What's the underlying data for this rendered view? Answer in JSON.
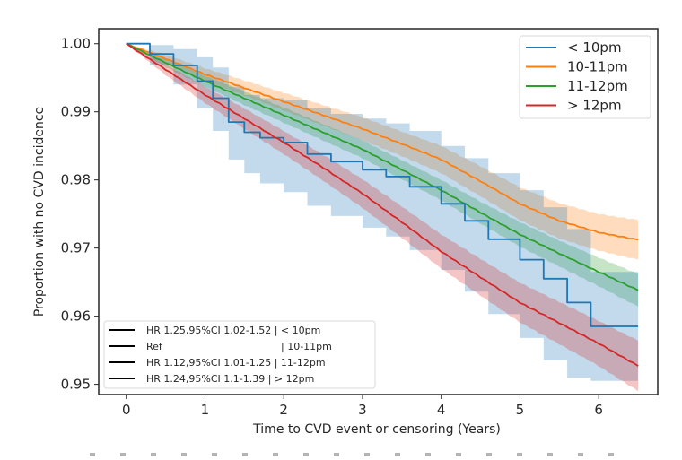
{
  "chart_data": {
    "type": "line",
    "subtype": "kaplan-meier survival curves with 95% confidence bands",
    "title": "",
    "xlabel": "Time to CVD event or censoring (Years)",
    "ylabel": "Proportion with no CVD incidence",
    "xlim": [
      -0.35,
      6.75
    ],
    "ylim": [
      0.9485,
      1.0022
    ],
    "xticks": [
      0,
      1,
      2,
      3,
      4,
      5,
      6
    ],
    "xtick_labels": [
      "0",
      "1",
      "2",
      "3",
      "4",
      "5",
      "6"
    ],
    "yticks": [
      0.95,
      0.96,
      0.97,
      0.98,
      0.99,
      1.0
    ],
    "ytick_labels": [
      "0.95",
      "0.96",
      "0.97",
      "0.98",
      "0.99",
      "1.00"
    ],
    "grid": false,
    "legend": {
      "placement": "top-right",
      "entries": [
        {
          "label": "< 10pm",
          "color": "#1f77b4"
        },
        {
          "label": "10-11pm",
          "color": "#ff7f0e"
        },
        {
          "label": "11-12pm",
          "color": "#2ca02c"
        },
        {
          "label": "> 12pm",
          "color": "#d62728"
        }
      ]
    },
    "hr_legend": {
      "placement": "bottom-left",
      "color": "#000000",
      "entries": [
        {
          "label": "HR 1.25,95%CI 1.02-1.52 | < 10pm"
        },
        {
          "label": "Ref                                          | 10-11pm"
        },
        {
          "label": "HR 1.12,95%CI 1.01-1.25 | 11-12pm"
        },
        {
          "label": "HR 1.24,95%CI 1.1-1.39 | > 12pm"
        }
      ]
    },
    "series": [
      {
        "name": "10-11pm",
        "color": "#ff7f0e",
        "step": false,
        "x": [
          0,
          0.5,
          1,
          1.5,
          2,
          2.5,
          3,
          3.5,
          4,
          4.5,
          5,
          5.5,
          6,
          6.5
        ],
        "y": [
          1.0,
          0.9978,
          0.9955,
          0.9935,
          0.9915,
          0.9895,
          0.9875,
          0.9853,
          0.983,
          0.9798,
          0.9765,
          0.974,
          0.9723,
          0.9712
        ],
        "lower": [
          1.0,
          0.9972,
          0.9946,
          0.9924,
          0.9902,
          0.988,
          0.9858,
          0.9835,
          0.981,
          0.9776,
          0.9741,
          0.9714,
          0.9696,
          0.9683
        ],
        "upper": [
          1.0,
          0.9984,
          0.9964,
          0.9946,
          0.9928,
          0.991,
          0.9892,
          0.9871,
          0.985,
          0.982,
          0.9789,
          0.9766,
          0.975,
          0.9741
        ]
      },
      {
        "name": "11-12pm",
        "color": "#2ca02c",
        "step": false,
        "x": [
          0,
          0.5,
          1,
          1.5,
          2,
          2.5,
          3,
          3.5,
          4,
          4.5,
          5,
          5.5,
          6,
          6.5
        ],
        "y": [
          1.0,
          0.9972,
          0.9945,
          0.992,
          0.9895,
          0.987,
          0.9845,
          0.9815,
          0.9785,
          0.9752,
          0.972,
          0.9692,
          0.9665,
          0.9638
        ],
        "lower": [
          1.0,
          0.9966,
          0.9937,
          0.991,
          0.9884,
          0.9858,
          0.9832,
          0.9801,
          0.977,
          0.9736,
          0.9702,
          0.9673,
          0.9644,
          0.9614
        ],
        "upper": [
          1.0,
          0.9978,
          0.9953,
          0.993,
          0.9906,
          0.9882,
          0.9858,
          0.9829,
          0.98,
          0.9768,
          0.9738,
          0.9711,
          0.9686,
          0.9662
        ]
      },
      {
        "name": "< 10pm",
        "color": "#1f77b4",
        "step": true,
        "x": [
          0,
          0.3,
          0.6,
          0.9,
          1.1,
          1.3,
          1.5,
          1.7,
          2.0,
          2.3,
          2.6,
          3.0,
          3.3,
          3.6,
          4.0,
          4.3,
          4.6,
          5.0,
          5.3,
          5.6,
          5.9,
          6.5
        ],
        "y": [
          1.0,
          0.9985,
          0.9968,
          0.9945,
          0.992,
          0.9885,
          0.987,
          0.9862,
          0.9855,
          0.9838,
          0.9827,
          0.9815,
          0.9805,
          0.979,
          0.9765,
          0.974,
          0.9713,
          0.9683,
          0.9655,
          0.962,
          0.9585,
          0.9585
        ],
        "lower": [
          1.0,
          0.9968,
          0.994,
          0.9905,
          0.9872,
          0.983,
          0.981,
          0.9795,
          0.9782,
          0.9762,
          0.9747,
          0.973,
          0.9717,
          0.9697,
          0.9668,
          0.9636,
          0.9603,
          0.9568,
          0.9535,
          0.951,
          0.9505,
          0.9505
        ],
        "upper": [
          1.0,
          0.9998,
          0.9992,
          0.998,
          0.9965,
          0.9937,
          0.9925,
          0.992,
          0.9918,
          0.9905,
          0.9897,
          0.989,
          0.9883,
          0.9872,
          0.985,
          0.9832,
          0.981,
          0.9785,
          0.976,
          0.9728,
          0.9665,
          0.9665
        ]
      },
      {
        "name": "> 12pm",
        "color": "#d62728",
        "step": false,
        "x": [
          0,
          0.5,
          1,
          1.5,
          2,
          2.5,
          3,
          3.5,
          4,
          4.5,
          5,
          5.5,
          6,
          6.5
        ],
        "y": [
          1.0,
          0.9962,
          0.9925,
          0.989,
          0.9855,
          0.9818,
          0.978,
          0.9738,
          0.9695,
          0.9657,
          0.962,
          0.959,
          0.956,
          0.9527
        ],
        "lower": [
          1.0,
          0.9954,
          0.9913,
          0.9875,
          0.9838,
          0.9799,
          0.9759,
          0.9715,
          0.967,
          0.963,
          0.9591,
          0.9559,
          0.9527,
          0.949
        ],
        "upper": [
          1.0,
          0.997,
          0.9937,
          0.9905,
          0.9872,
          0.9837,
          0.9801,
          0.9761,
          0.972,
          0.9684,
          0.9649,
          0.9621,
          0.9593,
          0.9564
        ]
      }
    ]
  }
}
